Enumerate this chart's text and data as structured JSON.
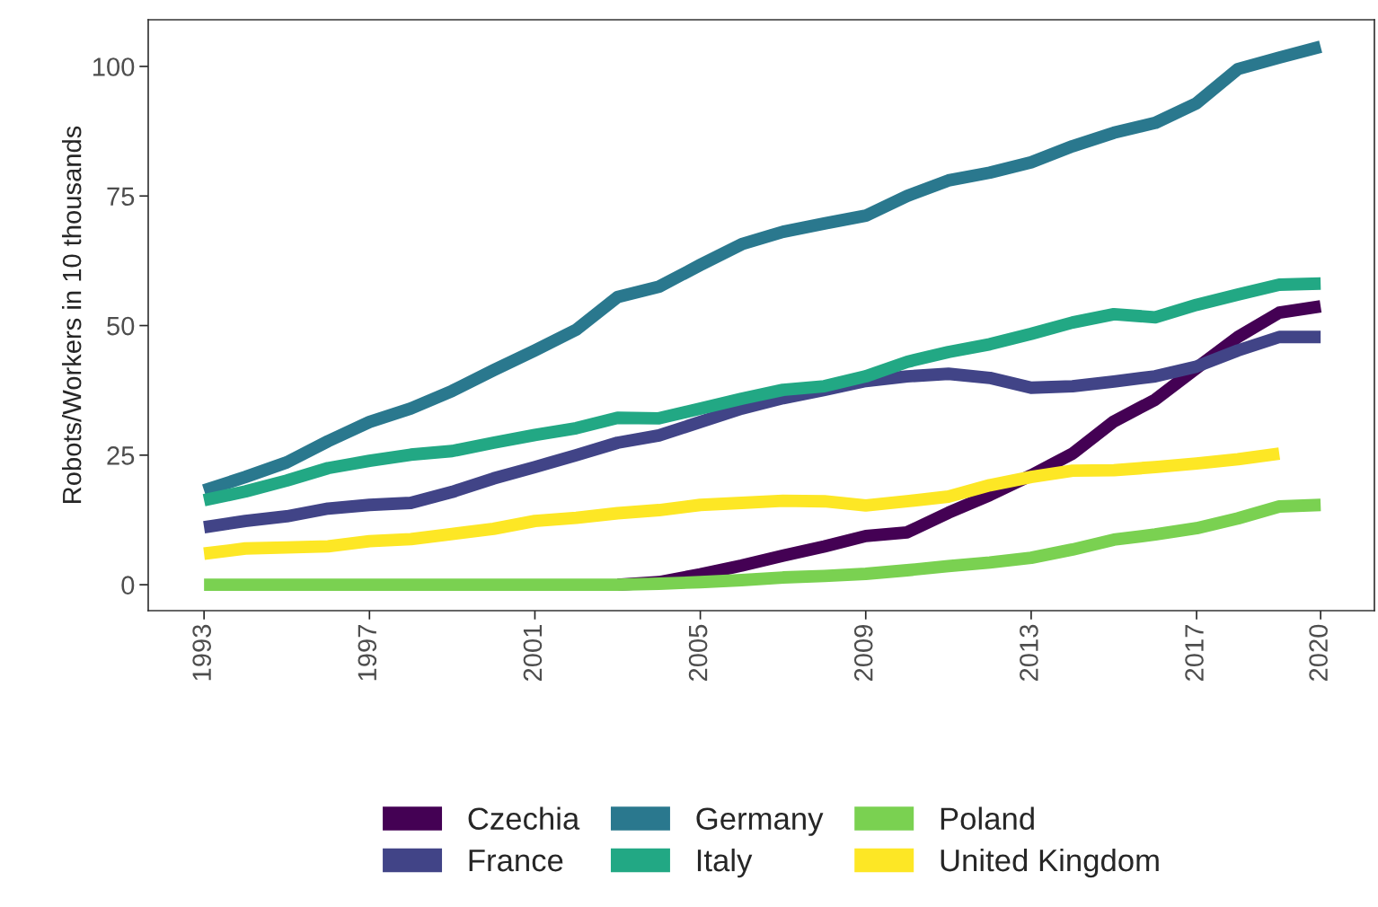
{
  "chart_data": {
    "type": "line",
    "ylabel": "Robots/Workers in 10 thousands",
    "x": [
      1993,
      1994,
      1995,
      1996,
      1997,
      1998,
      1999,
      2000,
      2001,
      2002,
      2003,
      2004,
      2005,
      2006,
      2007,
      2008,
      2009,
      2010,
      2011,
      2012,
      2013,
      2014,
      2015,
      2016,
      2017,
      2018,
      2019,
      2020
    ],
    "series": [
      {
        "name": "Czechia",
        "color": "#440154",
        "values": [
          null,
          null,
          null,
          null,
          null,
          null,
          null,
          null,
          null,
          null,
          0,
          0.5,
          2,
          3.7,
          5.6,
          7.4,
          9.4,
          10.1,
          13.9,
          17.3,
          21.1,
          25.3,
          31.5,
          35.7,
          41.8,
          47.8,
          52.5,
          53.7
        ]
      },
      {
        "name": "France",
        "color": "#414487",
        "values": [
          11.1,
          12.3,
          13.2,
          14.7,
          15.4,
          15.8,
          17.9,
          20.5,
          22.7,
          25,
          27.4,
          28.8,
          31.4,
          34,
          36,
          37.6,
          39.3,
          40.2,
          40.7,
          39.9,
          38,
          38.3,
          39.2,
          40.2,
          42.1,
          45.2,
          47.8,
          47.8
        ]
      },
      {
        "name": "Germany",
        "color": "#2a788e",
        "values": [
          18.2,
          20.8,
          23.6,
          27.7,
          31.4,
          34,
          37.4,
          41.4,
          45.2,
          49.2,
          55.5,
          57.5,
          61.7,
          65.7,
          68.1,
          69.7,
          71.2,
          75,
          78,
          79.5,
          81.5,
          84.6,
          87.2,
          89.1,
          92.9,
          99.5,
          101.7,
          103.8
        ]
      },
      {
        "name": "Italy",
        "color": "#22a884",
        "values": [
          16.3,
          18,
          20.1,
          22.5,
          23.9,
          25.1,
          25.8,
          27.4,
          28.9,
          30.2,
          32.2,
          32.1,
          34,
          35.9,
          37.6,
          38.3,
          40.2,
          43,
          44.9,
          46.4,
          48.4,
          50.6,
          52.2,
          51.6,
          54,
          56,
          57.9,
          58.1
        ]
      },
      {
        "name": "Poland",
        "color": "#7ad151",
        "values": [
          0,
          0,
          0,
          0,
          0,
          0,
          0,
          0,
          0,
          0,
          0,
          0.2,
          0.5,
          0.9,
          1.4,
          1.7,
          2.1,
          2.8,
          3.6,
          4.3,
          5.2,
          6.8,
          8.7,
          9.7,
          10.9,
          12.8,
          15.1,
          15.4
        ]
      },
      {
        "name": "United Kingdom",
        "color": "#fde725",
        "values": [
          6,
          7,
          7.2,
          7.4,
          8.4,
          8.8,
          9.8,
          10.8,
          12.3,
          12.9,
          13.8,
          14.4,
          15.4,
          15.8,
          16.2,
          16.1,
          15.3,
          16.1,
          17,
          19.2,
          20.8,
          22,
          22.1,
          22.7,
          23.4,
          24.2,
          25.3,
          null
        ]
      }
    ],
    "xlim": [
      1991.65,
      2021.3
    ],
    "xticks": [
      1993,
      1997,
      2001,
      2005,
      2009,
      2013,
      2017,
      2020
    ],
    "ylim": [
      -5,
      109
    ],
    "yticks": [
      0,
      25,
      50,
      75,
      100
    ],
    "grid": false,
    "legend": "bottom",
    "line_style": "solid",
    "marker": "none"
  }
}
